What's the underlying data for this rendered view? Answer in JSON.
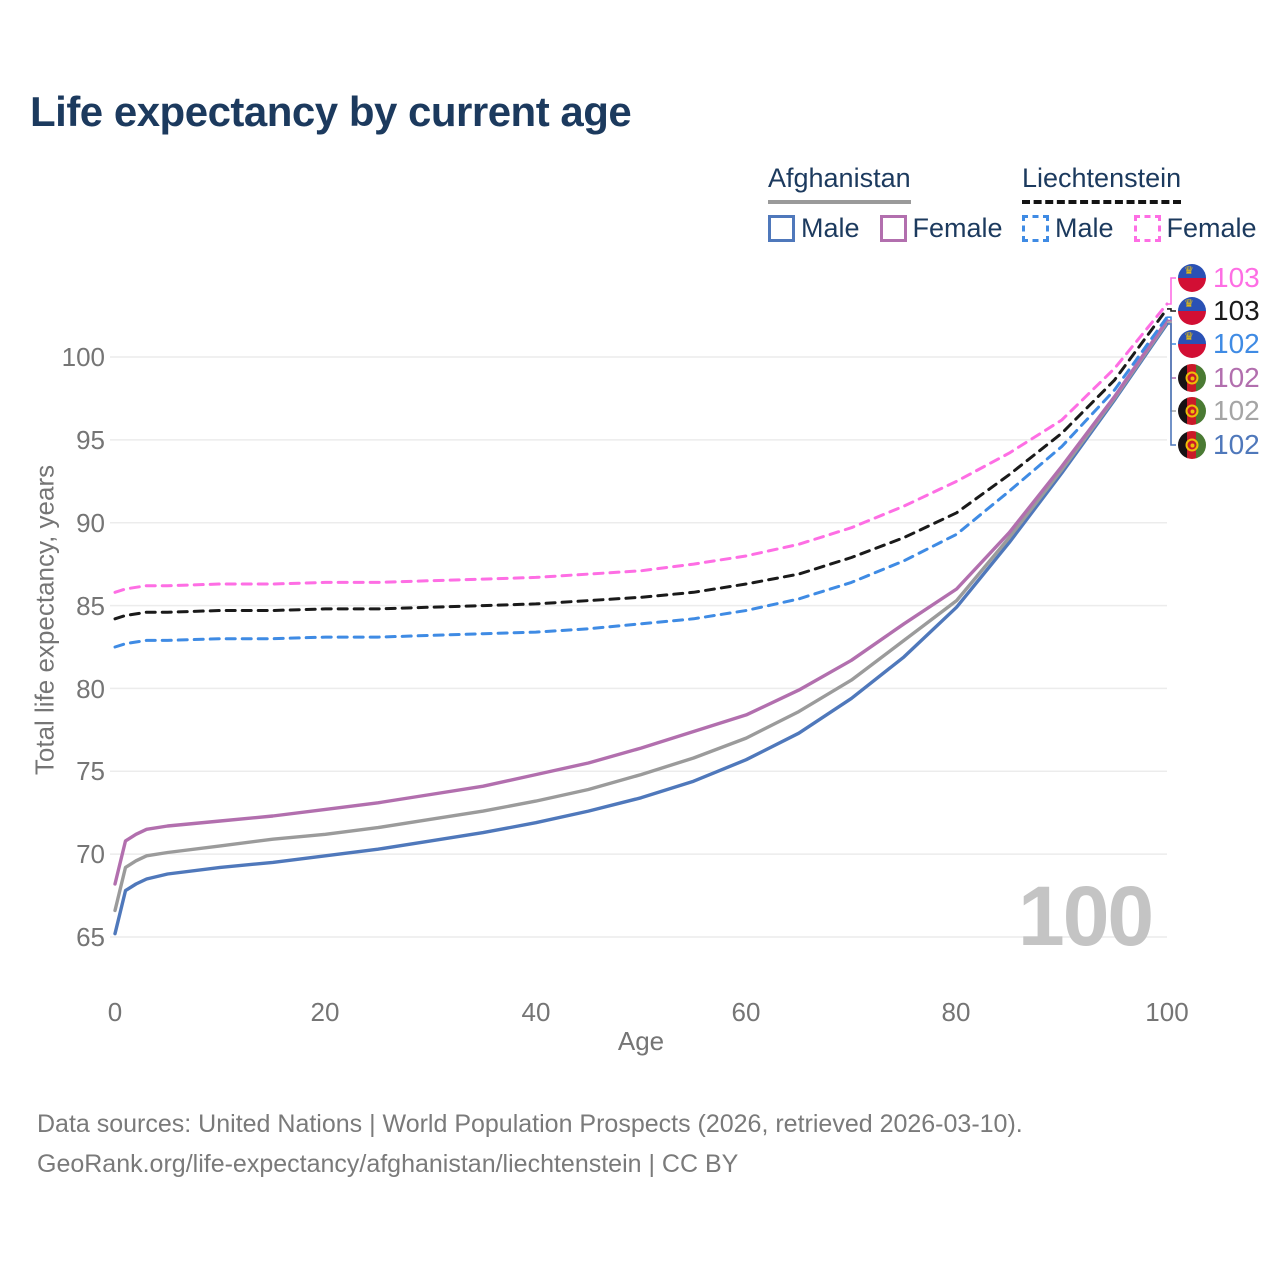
{
  "title": "Life expectancy by current age",
  "legend": {
    "afghanistan": "Afghanistan",
    "liechtenstein": "Liechtenstein",
    "afg_male": "Male",
    "afg_female": "Female",
    "lie_male": "Male",
    "lie_female": "Female"
  },
  "axes": {
    "y_title": "Total life expectancy, years",
    "x_title": "Age",
    "yticks": [
      "100",
      "95",
      "90",
      "85",
      "80",
      "75",
      "70",
      "65"
    ],
    "xticks": [
      "0",
      "20",
      "40",
      "60",
      "80",
      "100"
    ]
  },
  "watermark_age": "100",
  "footer": {
    "line1": "Data sources: United Nations | World Population Prospects (2026, retrieved 2026-03-10).",
    "line2": "GeoRank.org/life-expectancy/afghanistan/liechtenstein | CC BY"
  },
  "colors": {
    "title_text": "#1c3a5e",
    "axis_text": "#757575",
    "gridline": "#ececec",
    "afg_male": "#4f78bb",
    "afg_total": "#9b9b9b",
    "afg_female": "#b26fae",
    "lie_male": "#3f8be4",
    "lie_total": "#1a1a1a",
    "lie_female": "#fe6ee4",
    "watermark": "#c4c4c4"
  },
  "chart_data": {
    "type": "line",
    "title": "Life expectancy by current age",
    "xlabel": "Age",
    "ylabel": "Total life expectancy, years",
    "xlim": [
      0,
      100
    ],
    "ylim": [
      65,
      103.5
    ],
    "yticks": [
      65,
      70,
      75,
      80,
      85,
      90,
      95,
      100
    ],
    "xticks": [
      0,
      20,
      40,
      60,
      80,
      100
    ],
    "grid": "horizontal",
    "legend_position": "top-right",
    "x": [
      0,
      1,
      2,
      3,
      5,
      10,
      15,
      20,
      25,
      30,
      35,
      40,
      45,
      50,
      55,
      60,
      65,
      70,
      75,
      80,
      85,
      90,
      95,
      100
    ],
    "series": [
      {
        "name": "Afghanistan Male",
        "country": "Afghanistan",
        "sex": "male",
        "dashed": false,
        "color": "#4f78bb",
        "values": [
          65.2,
          67.8,
          68.2,
          68.5,
          68.8,
          69.2,
          69.5,
          69.9,
          70.3,
          70.8,
          71.3,
          71.9,
          72.6,
          73.4,
          74.4,
          75.7,
          77.3,
          79.4,
          81.9,
          84.9,
          88.8,
          93.0,
          97.4,
          102.0
        ]
      },
      {
        "name": "Afghanistan Total",
        "country": "Afghanistan",
        "sex": "total",
        "dashed": false,
        "color": "#9b9b9b",
        "values": [
          66.6,
          69.2,
          69.6,
          69.9,
          70.1,
          70.5,
          70.9,
          71.2,
          71.6,
          72.1,
          72.6,
          73.2,
          73.9,
          74.8,
          75.8,
          77.0,
          78.6,
          80.5,
          82.9,
          85.3,
          89.1,
          93.2,
          97.5,
          102.1
        ]
      },
      {
        "name": "Afghanistan Female",
        "country": "Afghanistan",
        "sex": "female",
        "dashed": false,
        "color": "#b26fae",
        "values": [
          68.2,
          70.8,
          71.2,
          71.5,
          71.7,
          72.0,
          72.3,
          72.7,
          73.1,
          73.6,
          74.1,
          74.8,
          75.5,
          76.4,
          77.4,
          78.4,
          79.9,
          81.7,
          83.9,
          86.0,
          89.4,
          93.4,
          97.6,
          102.2
        ]
      },
      {
        "name": "Liechtenstein Male",
        "country": "Liechtenstein",
        "sex": "male",
        "dashed": true,
        "color": "#3f8be4",
        "values": [
          82.5,
          82.7,
          82.8,
          82.9,
          82.9,
          83.0,
          83.0,
          83.1,
          83.1,
          83.2,
          83.3,
          83.4,
          83.6,
          83.9,
          84.2,
          84.7,
          85.4,
          86.4,
          87.7,
          89.3,
          91.9,
          94.6,
          98.0,
          102.4
        ]
      },
      {
        "name": "Liechtenstein Total",
        "country": "Liechtenstein",
        "sex": "total",
        "dashed": true,
        "color": "#1a1a1a",
        "values": [
          84.2,
          84.4,
          84.5,
          84.6,
          84.6,
          84.7,
          84.7,
          84.8,
          84.8,
          84.9,
          85.0,
          85.1,
          85.3,
          85.5,
          85.8,
          86.3,
          86.9,
          87.9,
          89.1,
          90.6,
          92.9,
          95.4,
          98.6,
          102.9
        ]
      },
      {
        "name": "Liechtenstein Female",
        "country": "Liechtenstein",
        "sex": "female",
        "dashed": true,
        "color": "#fe6ee4",
        "values": [
          85.8,
          86.0,
          86.1,
          86.2,
          86.2,
          86.3,
          86.3,
          86.4,
          86.4,
          86.5,
          86.6,
          86.7,
          86.9,
          87.1,
          87.5,
          88.0,
          88.7,
          89.7,
          91.0,
          92.5,
          94.2,
          96.2,
          99.3,
          103.2
        ]
      }
    ],
    "end_labels": [
      {
        "series": "Liechtenstein Female",
        "value": "103",
        "color": "#fe6ee4",
        "flag": "liechtenstein"
      },
      {
        "series": "Liechtenstein Total",
        "value": "103",
        "color": "#1a1a1a",
        "flag": "liechtenstein"
      },
      {
        "series": "Liechtenstein Male",
        "value": "102",
        "color": "#3f8be4",
        "flag": "liechtenstein"
      },
      {
        "series": "Afghanistan Female",
        "value": "102",
        "color": "#b26fae",
        "flag": "afghanistan"
      },
      {
        "series": "Afghanistan Total",
        "value": "102",
        "color": "#a5a5a5",
        "flag": "afghanistan"
      },
      {
        "series": "Afghanistan Male",
        "value": "102",
        "color": "#4f78bb",
        "flag": "afghanistan"
      }
    ]
  }
}
